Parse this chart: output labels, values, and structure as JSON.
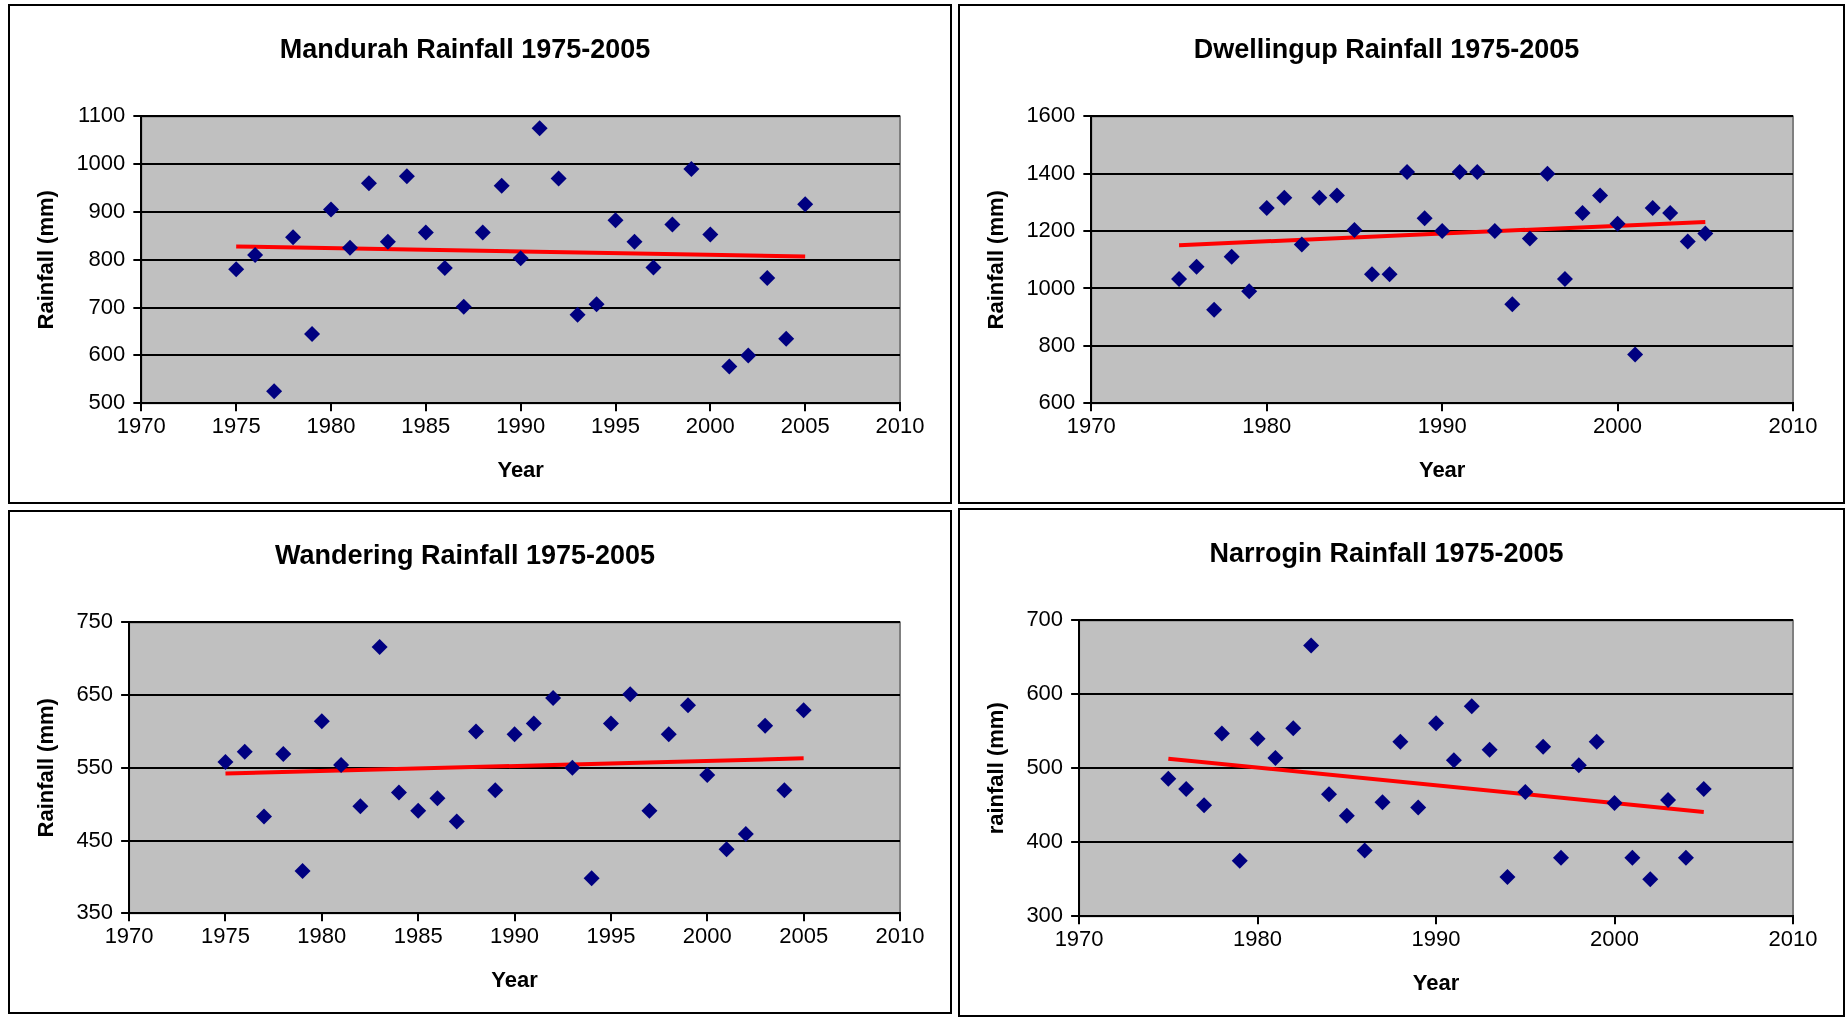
{
  "chart_data": [
    {
      "type": "scatter",
      "title": "Mandurah Rainfall 1975-2005",
      "xlabel": "Year",
      "ylabel": "Rainfall (mm)",
      "xlim": [
        1970,
        2010
      ],
      "xticks": [
        1970,
        1975,
        1980,
        1985,
        1990,
        1995,
        2000,
        2005,
        2010
      ],
      "ylim": [
        500,
        1100
      ],
      "yticks": [
        500,
        600,
        700,
        800,
        900,
        1000,
        1100
      ],
      "grid": "y",
      "legend": false,
      "marker": "diamond",
      "series": [
        {
          "type": "scatter",
          "color": "#000080",
          "x": [
            1975,
            1976,
            1977,
            1978,
            1979,
            1980,
            1981,
            1982,
            1983,
            1984,
            1985,
            1986,
            1987,
            1988,
            1989,
            1990,
            1991,
            1992,
            1993,
            1994,
            1995,
            1996,
            1997,
            1998,
            1999,
            2000,
            2001,
            2002,
            2003,
            2004,
            2005
          ],
          "values": [
            780,
            810,
            525,
            847,
            645,
            905,
            825,
            960,
            838,
            975,
            857,
            783,
            702,
            857,
            955,
            803,
            1075,
            970,
            685,
            707,
            883,
            838,
            784,
            874,
            990,
            853,
            577,
            600,
            762,
            635,
            916
          ]
        },
        {
          "type": "line",
          "color": "#ff0000",
          "marker": "none",
          "x": [
            1975,
            2005
          ],
          "values": [
            828,
            807
          ]
        }
      ]
    },
    {
      "type": "scatter",
      "title": "Dwellingup Rainfall 1975-2005",
      "xlabel": "Year",
      "ylabel": "Rainfall (mm)",
      "xlim": [
        1970,
        2010
      ],
      "xticks": [
        1970,
        1980,
        1990,
        2000,
        2010
      ],
      "ylim": [
        600,
        1600
      ],
      "yticks": [
        600,
        800,
        1000,
        1200,
        1400,
        1600
      ],
      "grid": "y",
      "legend": false,
      "marker": "diamond",
      "series": [
        {
          "type": "scatter",
          "color": "#000080",
          "x": [
            1975,
            1976,
            1977,
            1978,
            1979,
            1980,
            1981,
            1982,
            1983,
            1984,
            1985,
            1986,
            1987,
            1988,
            1989,
            1990,
            1991,
            1992,
            1993,
            1994,
            1995,
            1996,
            1997,
            1998,
            1999,
            2000,
            2001,
            2002,
            2003,
            2004,
            2005
          ],
          "values": [
            1033,
            1076,
            926,
            1111,
            990,
            1281,
            1316,
            1153,
            1316,
            1324,
            1204,
            1050,
            1050,
            1406,
            1245,
            1200,
            1406,
            1406,
            1200,
            945,
            1174,
            1400,
            1033,
            1263,
            1324,
            1226,
            770,
            1281,
            1263,
            1164,
            1192
          ]
        },
        {
          "type": "line",
          "color": "#ff0000",
          "marker": "none",
          "x": [
            1975,
            2005
          ],
          "values": [
            1151,
            1232
          ]
        }
      ]
    },
    {
      "type": "scatter",
      "title": "Wandering Rainfall 1975-2005",
      "xlabel": "Year",
      "ylabel": "Rainfall (mm)",
      "xlim": [
        1970,
        2010
      ],
      "xticks": [
        1970,
        1975,
        1980,
        1985,
        1990,
        1995,
        2000,
        2005,
        2010
      ],
      "ylim": [
        350,
        750
      ],
      "yticks": [
        350,
        450,
        550,
        650,
        750
      ],
      "grid": "y",
      "legend": false,
      "marker": "diamond",
      "series": [
        {
          "type": "scatter",
          "color": "#000080",
          "x": [
            1975,
            1976,
            1977,
            1978,
            1979,
            1980,
            1981,
            1982,
            1983,
            1984,
            1985,
            1986,
            1987,
            1988,
            1989,
            1990,
            1991,
            1992,
            1993,
            1994,
            1995,
            1996,
            1997,
            1998,
            1999,
            2000,
            2001,
            2002,
            2003,
            2004,
            2005
          ],
          "values": [
            558,
            572,
            483,
            569,
            408,
            614,
            554,
            497,
            716,
            516,
            491,
            508,
            476,
            600,
            519,
            596,
            611,
            646,
            550,
            398,
            611,
            651,
            491,
            596,
            636,
            540,
            438,
            459,
            608,
            519,
            629
          ]
        },
        {
          "type": "line",
          "color": "#ff0000",
          "marker": "none",
          "x": [
            1975,
            2005
          ],
          "values": [
            542,
            563
          ]
        }
      ]
    },
    {
      "type": "scatter",
      "title": "Narrogin Rainfall 1975-2005",
      "xlabel": "Year",
      "ylabel": "rainfall (mm)",
      "xlim": [
        1970,
        2010
      ],
      "xticks": [
        1970,
        1980,
        1990,
        2000,
        2010
      ],
      "ylim": [
        300,
        700
      ],
      "yticks": [
        300,
        400,
        500,
        600,
        700
      ],
      "grid": "y",
      "legend": false,
      "marker": "diamond",
      "series": [
        {
          "type": "scatter",
          "color": "#000080",
          "x": [
            1975,
            1976,
            1977,
            1978,
            1979,
            1980,
            1981,
            1982,
            1983,
            1984,
            1985,
            1986,
            1987,
            1988,
            1989,
            1990,
            1991,
            1992,
            1993,
            1994,
            1995,
            1996,
            1997,
            1998,
            1999,
            2000,
            2001,
            2002,
            2003,
            2004,
            2005
          ],
          "values": [
            486,
            472,
            450,
            547,
            375,
            540,
            514,
            554,
            666,
            465,
            436,
            389,
            454,
            536,
            447,
            561,
            511,
            584,
            525,
            353,
            468,
            529,
            379,
            504,
            536,
            453,
            379,
            350,
            457,
            379,
            472
          ]
        },
        {
          "type": "line",
          "color": "#ff0000",
          "marker": "none",
          "x": [
            1975,
            2005
          ],
          "values": [
            513,
            441
          ]
        }
      ]
    }
  ]
}
